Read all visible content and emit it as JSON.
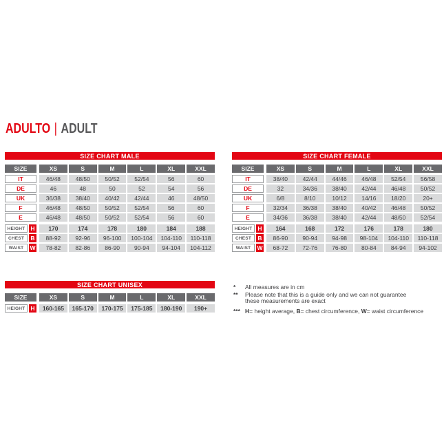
{
  "title": {
    "primary": "ADULTO",
    "separator": "|",
    "secondary": "ADULT"
  },
  "colors": {
    "accent_red": "#e30613",
    "header_gray": "#6a6a6d",
    "cell_gray": "#d9dadb",
    "border_gray": "#9c9ea0",
    "text_dark": "#3d3d3f",
    "title_gray": "#58585a"
  },
  "tables": {
    "male": {
      "title": "SIZE CHART MALE",
      "size_label": "SIZE",
      "columns": [
        "XS",
        "S",
        "M",
        "L",
        "XL",
        "XXL"
      ],
      "region_rows": [
        {
          "label": "IT",
          "values": [
            "46/48",
            "48/50",
            "50/52",
            "52/54",
            "56",
            "60"
          ]
        },
        {
          "label": "DE",
          "values": [
            "46",
            "48",
            "50",
            "52",
            "54",
            "56"
          ]
        },
        {
          "label": "UK",
          "values": [
            "36/38",
            "38/40",
            "40/42",
            "42/44",
            "46",
            "48/50"
          ]
        },
        {
          "label": "F",
          "values": [
            "46/48",
            "48/50",
            "50/52",
            "52/54",
            "56",
            "60"
          ]
        },
        {
          "label": "E",
          "values": [
            "46/48",
            "48/50",
            "50/52",
            "52/54",
            "56",
            "60"
          ]
        }
      ],
      "measure_rows": [
        {
          "label": "HEIGHT",
          "letter": "H",
          "bold": true,
          "values": [
            "170",
            "174",
            "178",
            "180",
            "184",
            "188"
          ]
        },
        {
          "label": "CHEST",
          "letter": "B",
          "bold": false,
          "values": [
            "88-92",
            "92-96",
            "96-100",
            "100-104",
            "104-110",
            "110-118"
          ]
        },
        {
          "label": "WAIST",
          "letter": "W",
          "bold": false,
          "values": [
            "78-82",
            "82-86",
            "86-90",
            "90-94",
            "94-104",
            "104-112"
          ]
        }
      ]
    },
    "female": {
      "title": "SIZE CHART FEMALE",
      "size_label": "SIZE",
      "columns": [
        "XS",
        "S",
        "M",
        "L",
        "XL",
        "XXL"
      ],
      "region_rows": [
        {
          "label": "IT",
          "values": [
            "38/40",
            "42/44",
            "44/46",
            "46/48",
            "52/54",
            "56/58"
          ]
        },
        {
          "label": "DE",
          "values": [
            "32",
            "34/36",
            "38/40",
            "42/44",
            "46/48",
            "50/52"
          ]
        },
        {
          "label": "UK",
          "values": [
            "6/8",
            "8/10",
            "10/12",
            "14/16",
            "18/20",
            "20+"
          ]
        },
        {
          "label": "F",
          "values": [
            "32/34",
            "36/38",
            "38/40",
            "40/42",
            "46/48",
            "50/52"
          ]
        },
        {
          "label": "E",
          "values": [
            "34/36",
            "36/38",
            "38/40",
            "42/44",
            "48/50",
            "52/54"
          ]
        }
      ],
      "measure_rows": [
        {
          "label": "HEIGHT",
          "letter": "H",
          "bold": true,
          "values": [
            "164",
            "168",
            "172",
            "176",
            "178",
            "180"
          ]
        },
        {
          "label": "CHEST",
          "letter": "B",
          "bold": false,
          "values": [
            "86-90",
            "90-94",
            "94-98",
            "98-104",
            "104-110",
            "110-118"
          ]
        },
        {
          "label": "WAIST",
          "letter": "W",
          "bold": false,
          "values": [
            "68-72",
            "72-76",
            "76-80",
            "80-84",
            "84-94",
            "94-102"
          ]
        }
      ]
    },
    "unisex": {
      "title": "SIZE CHART UNISEX",
      "size_label": "SIZE",
      "columns": [
        "XS",
        "S",
        "M",
        "L",
        "XL",
        "XXL"
      ],
      "region_rows": [],
      "measure_rows": [
        {
          "label": "HEIGHT",
          "letter": "H",
          "bold": true,
          "values": [
            "160-165",
            "165-170",
            "170-175",
            "175-185",
            "180-190",
            "190+"
          ]
        }
      ]
    }
  },
  "footnotes": {
    "items": [
      {
        "marker": "*",
        "gap_top": false,
        "lines": [
          [
            {
              "text": "All measures are in cm",
              "bold": false
            }
          ]
        ]
      },
      {
        "marker": "**",
        "gap_top": false,
        "lines": [
          [
            {
              "text": "Please note that this is a guide only and we can not guarantee",
              "bold": false
            }
          ],
          [
            {
              "text": "these measurements are exact",
              "bold": false
            }
          ]
        ]
      },
      {
        "marker": "***",
        "gap_top": true,
        "lines": [
          [
            {
              "text": "H",
              "bold": true
            },
            {
              "text": "= height average, ",
              "bold": false
            },
            {
              "text": "B",
              "bold": true
            },
            {
              "text": "= chest circumference, ",
              "bold": false
            },
            {
              "text": "W",
              "bold": true
            },
            {
              "text": "= waist circumference",
              "bold": false
            }
          ]
        ]
      }
    ]
  }
}
